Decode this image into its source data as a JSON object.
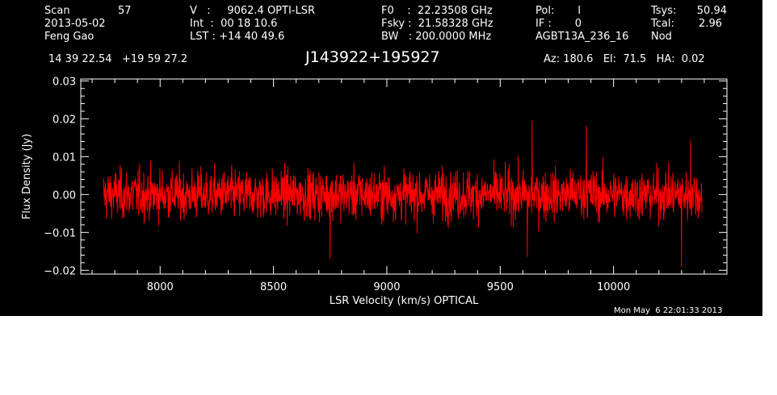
{
  "header": {
    "col1": [
      "Scan",
      "2013-05-02",
      "Feng Gao"
    ],
    "scan_number": "57",
    "col2": [
      "V   :     9062.4 OPTI-LSR",
      "Int  :  00 18 10.6",
      "LST : +14 40 49.6"
    ],
    "col3": [
      "F0    :  22.23508 GHz",
      "Fsky :  21.58328 GHz",
      "BW   : 200.0000 MHz"
    ],
    "col4": [
      "Pol:       I",
      "IF :       0",
      "AGBT13A_236_16"
    ],
    "col5_labels": [
      "Tsys:",
      "Tcal:",
      "Nod"
    ],
    "col5_values": [
      "50.94",
      "2.96",
      ""
    ]
  },
  "position": "14 39 22.54   +19 59 27.2",
  "source_name": "J143922+195927",
  "pointing": "Az: 180.6   El:  71.5   HA:  0.02",
  "timestamp": "Mon May  6 22:01:33 2013",
  "colors": {
    "background": "#000000",
    "axes": "#ffffff",
    "trace": "#ff0000"
  },
  "chart_data": {
    "type": "line",
    "xlabel": "LSR Velocity (km/s) OPTICAL",
    "ylabel": "Flux Density (Jy)",
    "xlim": [
      7650,
      10500
    ],
    "ylim": [
      -0.021,
      0.0305
    ],
    "x_ticks": [
      8000,
      8500,
      9000,
      9500,
      10000
    ],
    "x_tick_labels": [
      "8000",
      "8500",
      "9000",
      "9500",
      "10000"
    ],
    "y_ticks": [
      -0.02,
      -0.01,
      0.0,
      0.01,
      0.02,
      0.03
    ],
    "y_tick_labels": [
      "−0.02",
      "−0.01",
      "0.00",
      "0.01",
      "0.02",
      "0.03"
    ],
    "series": [
      {
        "x_start": 7750,
        "x_end": 10390,
        "noise_rms_jy": 0.0045,
        "mean_jy": 0.0,
        "max_jy": 0.0195,
        "min_jy": -0.019,
        "spike_points": [
          {
            "x": 9640,
            "y": 0.0195
          },
          {
            "x": 9880,
            "y": 0.0182
          },
          {
            "x": 10300,
            "y": -0.019
          },
          {
            "x": 8750,
            "y": -0.017
          },
          {
            "x": 9620,
            "y": -0.0165
          },
          {
            "x": 10340,
            "y": 0.0145
          }
        ]
      }
    ],
    "grid": false,
    "legend": "none"
  }
}
